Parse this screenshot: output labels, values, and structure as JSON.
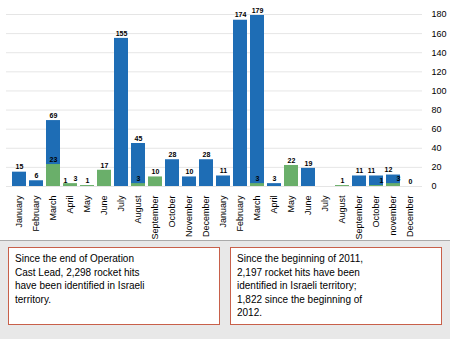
{
  "chart_data": {
    "type": "bar",
    "categories": [
      "January",
      "February",
      "March",
      "April",
      "May",
      "June",
      "July",
      "August",
      "September",
      "October",
      "November",
      "December",
      "January",
      "February",
      "March",
      "April",
      "May",
      "June",
      "July",
      "August",
      "September",
      "October",
      "november",
      "December"
    ],
    "series": [
      {
        "color": "#1E6DB5",
        "values": [
          15,
          6,
          69,
          1,
          0,
          0,
          155,
          45,
          0,
          28,
          10,
          28,
          11,
          174,
          179,
          3,
          0,
          19,
          0,
          0,
          11,
          11,
          12,
          0
        ],
        "value_labels": [
          "15",
          "6",
          "69",
          "1",
          null,
          null,
          "155",
          "45",
          null,
          "28",
          "10",
          "28",
          "11",
          "174",
          "179",
          "3",
          null,
          "19",
          null,
          null,
          "11",
          "11",
          "12",
          "0"
        ]
      },
      {
        "color": "#6AAF6A",
        "values": [
          0,
          0,
          23,
          3,
          1,
          17,
          0,
          3,
          10,
          0,
          0,
          0,
          0,
          0,
          3,
          0,
          22,
          0,
          0,
          1,
          0,
          1,
          3,
          0
        ],
        "value_labels": [
          null,
          null,
          "23",
          "3",
          "1",
          "17",
          null,
          "3",
          "10",
          null,
          null,
          null,
          null,
          null,
          "3",
          null,
          "22",
          null,
          null,
          "1",
          null,
          "1",
          "3",
          null
        ]
      }
    ],
    "ylim": [
      0,
      180
    ],
    "yticks": [
      0,
      20,
      40,
      60,
      80,
      100,
      120,
      140,
      160,
      180
    ],
    "grid": true,
    "data_labels": true,
    "annotations": [
      "Since the end of Operation\nCast Lead, 2,298 rocket hits\nhave been identified in Israeli\nterritory.",
      "Since the beginning of 2011,\n2,197 rocket hits have been\nidentified in Israeli territory;\n1,822 since the beginning of\n2012."
    ]
  }
}
